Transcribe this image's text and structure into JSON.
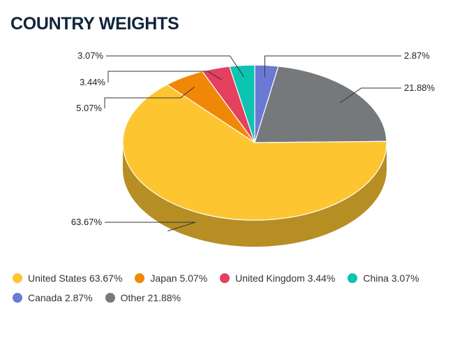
{
  "title": "COUNTRY WEIGHTS",
  "chart_data": {
    "type": "pie",
    "title": "COUNTRY WEIGHTS",
    "legend_position": "bottom",
    "slices": [
      {
        "name": "Canada",
        "value": 2.87,
        "label": "2.87%",
        "legend": "Canada 2.87%",
        "color": "#6b79d4"
      },
      {
        "name": "Other",
        "value": 21.88,
        "label": "21.88%",
        "legend": "Other 21.88%",
        "color": "#76797c"
      },
      {
        "name": "United States",
        "value": 63.67,
        "label": "63.67%",
        "legend": "United States 63.67%",
        "color": "#fdc530"
      },
      {
        "name": "Japan",
        "value": 5.07,
        "label": "5.07%",
        "legend": "Japan 5.07%",
        "color": "#f08706"
      },
      {
        "name": "United Kingdom",
        "value": 3.44,
        "label": "3.44%",
        "legend": "United Kingdom 3.44%",
        "color": "#e4405f"
      },
      {
        "name": "China",
        "value": 3.07,
        "label": "3.07%",
        "legend": "China 3.07%",
        "color": "#0cc4b0"
      }
    ],
    "legend_rows": [
      [
        "United States",
        "Japan",
        "United Kingdom",
        "China"
      ],
      [
        "Canada",
        "Other"
      ]
    ]
  }
}
